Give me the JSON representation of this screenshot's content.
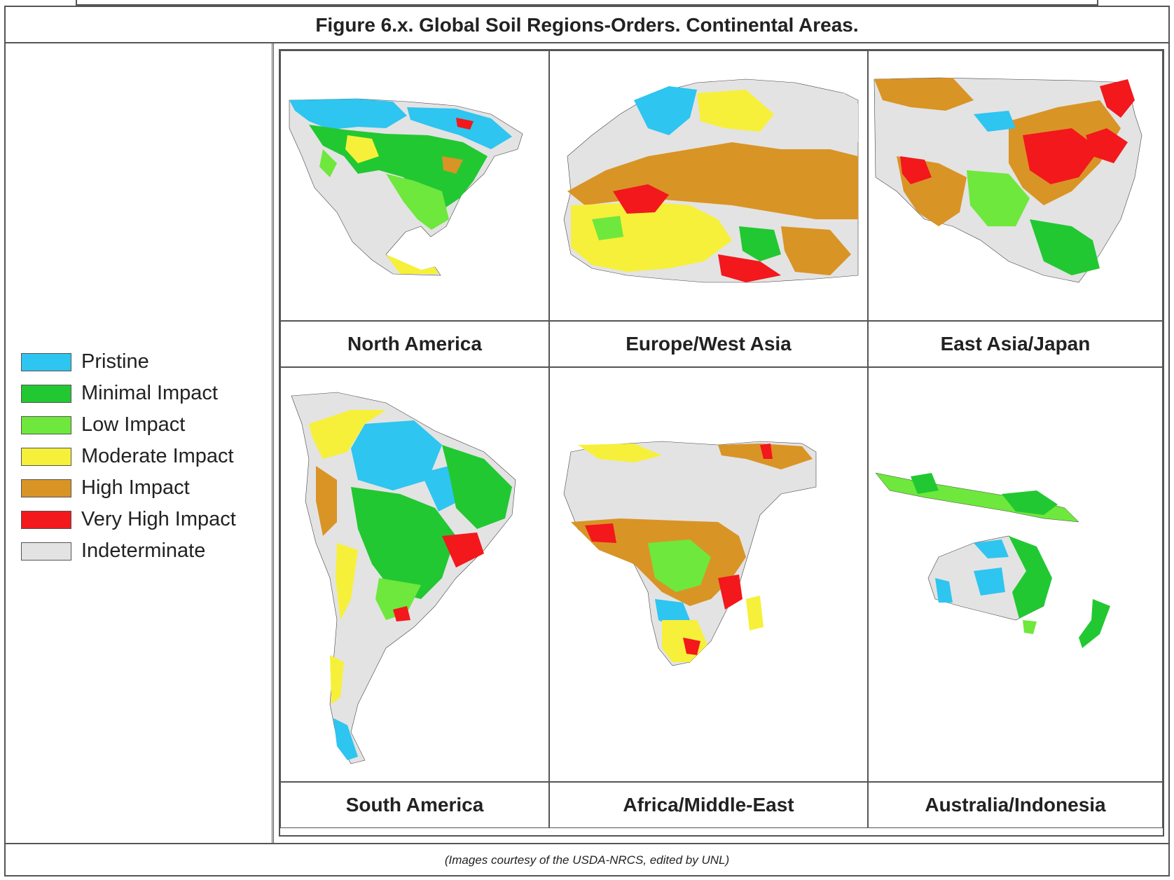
{
  "figure": {
    "title": "Figure 6.x. Global Soil Regions-Orders. Continental Areas.",
    "credit": "(Images courtesy of the USDA-NRCS, edited by UNL)"
  },
  "legend": {
    "items": [
      {
        "label": "Pristine",
        "color": "#2ec5f0"
      },
      {
        "label": "Minimal Impact",
        "color": "#22c832"
      },
      {
        "label": "Low Impact",
        "color": "#6ee83c"
      },
      {
        "label": "Moderate Impact",
        "color": "#f6f03a"
      },
      {
        "label": "High Impact",
        "color": "#d99426"
      },
      {
        "label": "Very High Impact",
        "color": "#f2181c"
      },
      {
        "label": "Indeterminate",
        "color": "#e3e3e3"
      }
    ]
  },
  "maps": [
    {
      "region": "North America"
    },
    {
      "region": "Europe/West Asia"
    },
    {
      "region": "East Asia/Japan"
    },
    {
      "region": "South America"
    },
    {
      "region": "Africa/Middle-East"
    },
    {
      "region": "Australia/Indonesia"
    }
  ]
}
